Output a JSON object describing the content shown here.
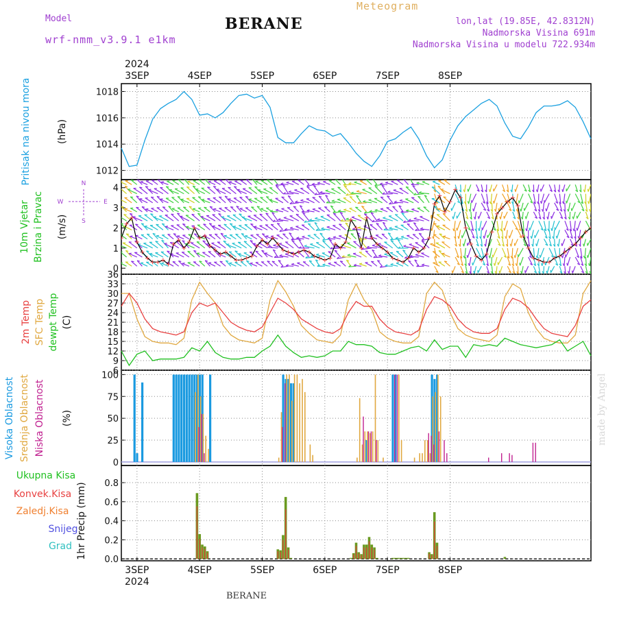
{
  "header": {
    "model_label": "Model",
    "model_name": "wrf-nmm_v3.9.1 e1km",
    "station": "BERANE",
    "meteogram": "Meteogram",
    "lonlat": "lon,lat (19.85E, 42.8312N)",
    "elevation": "Nadmorska Visina 691m",
    "model_elevation": "Nadmorska Visina u modelu 722.934m",
    "footer_station": "BERANE",
    "credit": "made by Angel"
  },
  "time_axis": {
    "year": "2024",
    "days": [
      "3SEP",
      "4SEP",
      "5SEP",
      "6SEP",
      "7SEP",
      "8SEP"
    ]
  },
  "colors": {
    "pressure": "#1aa0e0",
    "temp2m": "#e84040",
    "sfc_temp": "#e0a840",
    "dewpoint": "#20c020",
    "high_cloud": "#1a9ae0",
    "mid_cloud": "#e0a840",
    "low_cloud": "#c02090",
    "total_precip": "#20c020",
    "conv_precip": "#e84040",
    "frozen_precip": "#f08030",
    "snow": "#5050e0",
    "hail": "#30c0c0",
    "wind_purple": "#8a2be2",
    "wind_cyan": "#20c0d0",
    "wind_green": "#40d040",
    "wind_yellow": "#d0d020",
    "wind_orange": "#f0a020"
  },
  "chart_data": [
    {
      "type": "line",
      "ylabel": "Pritisak na nivou mora",
      "unit": "(hPa)",
      "ylim": [
        1011.3,
        1018.6
      ],
      "yticks": [
        1012,
        1014,
        1016,
        1018
      ],
      "grid": true,
      "series": [
        {
          "x": [
            0,
            3,
            6,
            9,
            12,
            15,
            18,
            21,
            24,
            27,
            30,
            33,
            36,
            39,
            42,
            45,
            48,
            51,
            54,
            57,
            60,
            63,
            66,
            69,
            72,
            75,
            78,
            81,
            84,
            87,
            90,
            93,
            96,
            99,
            102,
            105,
            108,
            111,
            114,
            117,
            120,
            123,
            126,
            129,
            132,
            135,
            138,
            141,
            144,
            147,
            150,
            153,
            156,
            159,
            162,
            165,
            168,
            171,
            174,
            177,
            180
          ],
          "values": [
            1013.7,
            1012.3,
            1012.4,
            1014.3,
            1015.9,
            1016.7,
            1017.1,
            1017.4,
            1018.0,
            1017.4,
            1016.2,
            1016.3,
            1016.0,
            1016.4,
            1017.1,
            1017.7,
            1017.8,
            1017.5,
            1017.7,
            1016.8,
            1014.5,
            1014.1,
            1014.1,
            1014.8,
            1015.4,
            1015.1,
            1015.0,
            1014.6,
            1014.8,
            1014.1,
            1013.3,
            1012.7,
            1012.3,
            1013.1,
            1014.2,
            1014.4,
            1014.9,
            1015.3,
            1014.4,
            1013.1,
            1012.2,
            1012.8,
            1014.3,
            1015.4,
            1016.1,
            1016.6,
            1017.1,
            1017.4,
            1016.9,
            1015.6,
            1014.6,
            1014.4,
            1015.3,
            1016.4,
            1016.9,
            1016.9,
            1017.0,
            1017.3,
            1016.8,
            1015.7,
            1014.4
          ]
        }
      ]
    },
    {
      "type": "scatter",
      "ylabel": "10m Vjetar Brzina i Pravac",
      "unit": "(m/s)",
      "compass": [
        "N",
        "W",
        "E",
        "S"
      ],
      "ylim": [
        -0.3,
        4.4
      ],
      "yticks": [
        0,
        1,
        2,
        3,
        4
      ],
      "grid": false,
      "series": [
        {
          "name": "wind speed",
          "x": [
            0,
            2,
            4,
            6,
            8,
            10,
            12,
            14,
            16,
            18,
            20,
            22,
            24,
            26,
            28,
            30,
            32,
            34,
            36,
            38,
            40,
            42,
            44,
            46,
            48,
            50,
            52,
            54,
            56,
            58,
            60,
            62,
            64,
            66,
            68,
            70,
            72,
            74,
            76,
            78,
            80,
            82,
            84,
            86,
            88,
            90,
            92,
            94,
            96,
            98,
            100,
            102,
            104,
            106,
            108,
            110,
            112,
            114,
            116,
            118,
            120,
            122,
            124,
            126,
            128,
            130,
            132,
            134,
            136,
            138,
            140,
            142,
            144,
            146,
            148,
            150,
            152,
            154,
            156,
            158,
            160,
            162,
            164,
            166,
            168,
            170,
            172,
            174,
            176,
            178,
            180
          ],
          "values": [
            1.5,
            2.2,
            2.5,
            1.3,
            0.8,
            0.5,
            0.3,
            0.3,
            0.4,
            0.2,
            1.2,
            1.4,
            1.0,
            1.3,
            2.0,
            1.5,
            1.6,
            1.1,
            0.9,
            0.7,
            0.8,
            0.6,
            0.4,
            0.4,
            0.5,
            0.6,
            1.1,
            1.4,
            1.2,
            1.5,
            1.2,
            0.9,
            0.8,
            0.7,
            0.8,
            0.9,
            0.8,
            0.6,
            0.5,
            0.4,
            0.5,
            1.2,
            1.0,
            1.3,
            2.4,
            2.0,
            1.0,
            2.5,
            1.5,
            1.2,
            1.0,
            0.8,
            0.5,
            0.4,
            0.3,
            0.5,
            1.0,
            0.8,
            1.0,
            1.5,
            3.2,
            3.6,
            2.8,
            3.3,
            3.9,
            3.5,
            2.0,
            1.2,
            0.6,
            0.4,
            0.7,
            1.8,
            2.7,
            3.0,
            3.3,
            3.5,
            3.1,
            1.6,
            1.0,
            0.5,
            0.4,
            0.3,
            0.3,
            0.5,
            0.6,
            0.8,
            1.0,
            1.2,
            1.5,
            1.8,
            2.0
          ]
        }
      ]
    },
    {
      "type": "line",
      "ylabel": "2m Temp / SFC Temp / dewpt Temp",
      "labels": [
        "2m Temp",
        "SFC Temp",
        "dewpt Temp"
      ],
      "unit": "(C)",
      "ylim": [
        6,
        36
      ],
      "yticks": [
        6,
        9,
        12,
        15,
        18,
        21,
        24,
        27,
        30,
        33,
        36
      ],
      "grid": true,
      "series": [
        {
          "name": "2m Temp",
          "x": [
            0,
            3,
            6,
            9,
            12,
            15,
            18,
            21,
            24,
            27,
            30,
            33,
            36,
            39,
            42,
            45,
            48,
            51,
            54,
            57,
            60,
            63,
            66,
            69,
            72,
            75,
            78,
            81,
            84,
            87,
            90,
            93,
            96,
            99,
            102,
            105,
            108,
            111,
            114,
            117,
            120,
            123,
            126,
            129,
            132,
            135,
            138,
            141,
            144,
            147,
            150,
            153,
            156,
            159,
            162,
            165,
            168,
            171,
            174,
            177,
            180
          ],
          "values": [
            26,
            30,
            27,
            22,
            19,
            18,
            17.5,
            17,
            18,
            24,
            27,
            26,
            27,
            24,
            21,
            19.5,
            18.5,
            18,
            19.5,
            24,
            28.5,
            27,
            25,
            22,
            20.5,
            19,
            18,
            17.5,
            19,
            24,
            27.5,
            26,
            26,
            22,
            19.5,
            18,
            17.5,
            17,
            18.5,
            25,
            29,
            28,
            26,
            22,
            19.5,
            18,
            17.5,
            17.5,
            19,
            25,
            28.5,
            27.5,
            25.5,
            22,
            19,
            17.5,
            17,
            16.5,
            20,
            26,
            28
          ]
        },
        {
          "name": "SFC Temp",
          "x": [
            0,
            3,
            6,
            9,
            12,
            15,
            18,
            21,
            24,
            27,
            30,
            33,
            36,
            39,
            42,
            45,
            48,
            51,
            54,
            57,
            60,
            63,
            66,
            69,
            72,
            75,
            78,
            81,
            84,
            87,
            90,
            93,
            96,
            99,
            102,
            105,
            108,
            111,
            114,
            117,
            120,
            123,
            126,
            129,
            132,
            135,
            138,
            141,
            144,
            147,
            150,
            153,
            156,
            159,
            162,
            165,
            168,
            171,
            174,
            177,
            180
          ],
          "values": [
            30,
            30,
            22,
            16.5,
            15,
            14.5,
            14.5,
            14,
            16,
            28,
            33.5,
            30,
            27,
            20,
            17,
            15.5,
            15,
            14.5,
            16,
            28,
            34,
            30.5,
            26,
            20,
            17.5,
            15.5,
            15,
            14.5,
            17,
            28,
            33,
            28,
            25,
            18,
            16,
            15,
            14.5,
            14.5,
            16.5,
            30,
            33.5,
            31,
            24,
            19,
            17,
            16,
            15.5,
            15,
            17,
            29,
            33,
            31.5,
            24,
            19,
            16,
            15,
            14.5,
            14.5,
            17,
            30,
            34
          ]
        },
        {
          "name": "dewpt Temp",
          "x": [
            0,
            3,
            6,
            9,
            12,
            15,
            18,
            21,
            24,
            27,
            30,
            33,
            36,
            39,
            42,
            45,
            48,
            51,
            54,
            57,
            60,
            63,
            66,
            69,
            72,
            75,
            78,
            81,
            84,
            87,
            90,
            93,
            96,
            99,
            102,
            105,
            108,
            111,
            114,
            117,
            120,
            123,
            126,
            129,
            132,
            135,
            138,
            141,
            144,
            147,
            150,
            153,
            156,
            159,
            162,
            165,
            168,
            171,
            174,
            177,
            180
          ],
          "values": [
            12,
            7.5,
            11,
            12,
            9,
            9.5,
            9.5,
            9.5,
            10,
            13,
            12,
            15,
            11.5,
            10,
            9.5,
            9.5,
            10,
            10,
            12,
            13.5,
            17,
            13.5,
            11.5,
            10,
            10.5,
            10,
            10.5,
            12,
            12,
            15,
            14,
            14,
            13.5,
            11.5,
            11,
            11,
            12,
            13,
            13.5,
            12,
            15.5,
            12.5,
            13.5,
            13.5,
            10,
            14,
            13.5,
            14,
            13.5,
            16,
            15,
            14,
            13.5,
            13,
            13.5,
            14,
            15.5,
            12,
            13.5,
            15,
            10.5
          ]
        }
      ]
    },
    {
      "type": "bar",
      "ylabel": "Visoka Oblacnost / Srednja Oblacnost / Niska Oblacnost",
      "labels": [
        "Visoka Oblacnost",
        "Srednja Oblacnost",
        "Niska Oblacnost"
      ],
      "unit": "(%)",
      "ylim": [
        -4,
        105
      ],
      "yticks": [
        0,
        25,
        50,
        75,
        100
      ],
      "grid": true,
      "series": [
        {
          "name": "Visoka Oblacnost",
          "x": [
            5,
            6,
            8,
            20,
            21,
            22,
            23,
            24,
            25,
            26,
            27,
            28,
            29,
            30,
            31,
            34,
            62,
            63,
            64,
            65,
            66,
            94,
            104,
            105,
            119,
            120,
            121
          ],
          "values": [
            100,
            10,
            91,
            100,
            100,
            100,
            100,
            100,
            100,
            100,
            100,
            100,
            100,
            100,
            100,
            100,
            100,
            95,
            95,
            90,
            90,
            25,
            100,
            100,
            100,
            95,
            100
          ]
        },
        {
          "name": "Srednja Oblacnost",
          "x": [
            28,
            29,
            30,
            31,
            32,
            33,
            60,
            61,
            63,
            64,
            65,
            66,
            67,
            68,
            69,
            70,
            72,
            73,
            90,
            91,
            92,
            93,
            94,
            95,
            96,
            97,
            98,
            100,
            106,
            107,
            112,
            114,
            115,
            116,
            117,
            118,
            119,
            120,
            121,
            122
          ],
          "values": [
            80,
            100,
            75,
            55,
            30,
            15,
            5,
            57,
            100,
            100,
            70,
            100,
            100,
            90,
            95,
            80,
            20,
            8,
            5,
            73,
            20,
            35,
            35,
            33,
            35,
            100,
            25,
            5,
            100,
            25,
            5,
            10,
            10,
            25,
            25,
            10,
            75,
            80,
            100,
            75
          ]
        },
        {
          "name": "Niska Oblacnost",
          "x": [
            29,
            30,
            31,
            61,
            62,
            92,
            94,
            95,
            97,
            104,
            105,
            117,
            118,
            119,
            121,
            123,
            124,
            140,
            145,
            148,
            149,
            157,
            158
          ],
          "values": [
            40,
            55,
            10,
            40,
            90,
            52,
            35,
            35,
            25,
            100,
            100,
            33,
            30,
            20,
            35,
            25,
            10,
            5,
            10,
            10,
            8,
            22,
            22
          ]
        }
      ]
    },
    {
      "type": "bar",
      "ylabel": "1hr Precip",
      "unit": "(mm)",
      "labels": [
        "Ukupna Kisa",
        "Konvek.Kisa",
        "Zaledj.Kisa",
        "Snijeg",
        "Grad"
      ],
      "ylim": [
        -0.02,
        0.98
      ],
      "yticks": [
        0,
        0.2,
        0.4,
        0.6,
        0.8
      ],
      "grid": true,
      "series": [
        {
          "name": "Ukupna Kisa",
          "x": [
            29,
            30,
            31,
            32,
            33,
            60,
            61,
            62,
            63,
            64,
            65,
            88,
            89,
            90,
            91,
            92,
            93,
            94,
            95,
            96,
            97,
            98,
            104,
            105,
            106,
            107,
            108,
            109,
            110,
            118,
            119,
            120,
            121,
            147
          ],
          "values": [
            0.69,
            0.26,
            0.15,
            0.13,
            0.08,
            0.1,
            0.09,
            0.25,
            0.65,
            0.12,
            0.01,
            0.01,
            0.06,
            0.17,
            0.07,
            0.05,
            0.15,
            0.15,
            0.23,
            0.15,
            0.12,
            0.01,
            0.01,
            0.01,
            0.01,
            0.01,
            0.01,
            0.01,
            0.01,
            0.07,
            0.05,
            0.49,
            0.17,
            0.02
          ]
        }
      ]
    }
  ]
}
